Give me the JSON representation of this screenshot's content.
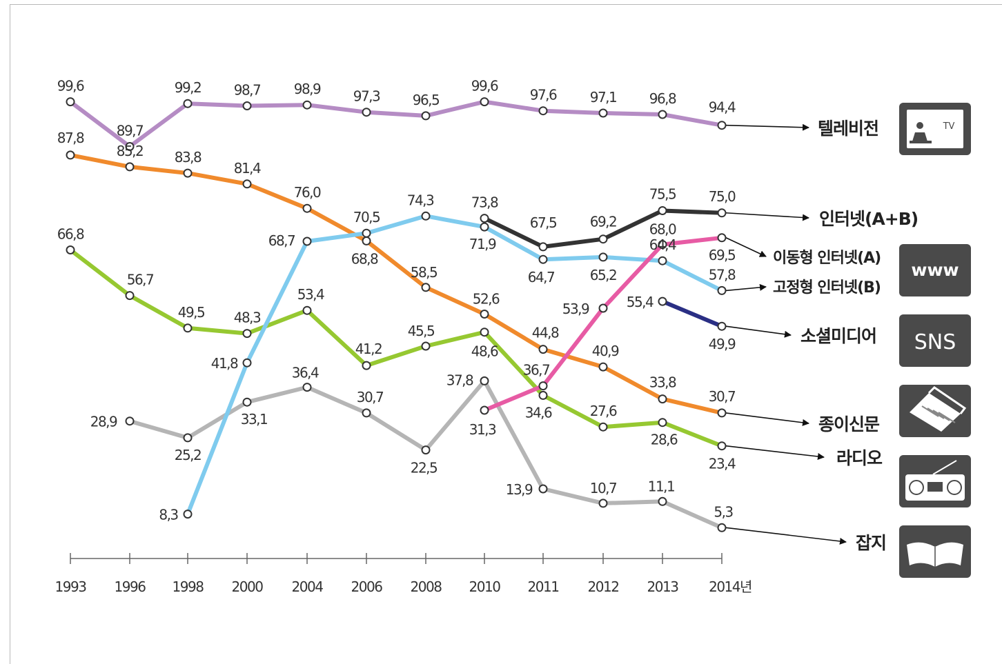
{
  "chart_data": {
    "type": "line",
    "categories": [
      "1993",
      "1996",
      "1998",
      "2000",
      "2004",
      "2006",
      "2008",
      "2010",
      "2011",
      "2012",
      "2013",
      "2014년"
    ],
    "ylim": [
      0,
      100
    ],
    "grid": false,
    "series": [
      {
        "name": "텔레비전",
        "color": "#b58cc4",
        "icon": "tv-icon",
        "icon_text": "TV",
        "values": [
          99.6,
          89.7,
          99.2,
          98.7,
          98.9,
          97.3,
          96.5,
          99.6,
          97.6,
          97.1,
          96.8,
          94.4
        ],
        "value_labels": [
          "99,6",
          "89,7",
          "99,2",
          "98,7",
          "98,9",
          "97,3",
          "96,5",
          "99,6",
          "97,6",
          "97,1",
          "96,8",
          "94,4"
        ]
      },
      {
        "name": "종이신문",
        "color": "#f08a2c",
        "icon": "newspaper-icon",
        "values": [
          87.8,
          85.2,
          83.8,
          81.4,
          76.0,
          68.8,
          58.5,
          52.6,
          44.8,
          40.9,
          33.8,
          30.7
        ],
        "value_labels": [
          "87,8",
          "85,2",
          "83,8",
          "81,4",
          "76,0",
          "68,8",
          "58,5",
          "52,6",
          "44,8",
          "40,9",
          "33,8",
          "30,7"
        ]
      },
      {
        "name": "라디오",
        "color": "#96c831",
        "icon": "radio-icon",
        "values": [
          66.8,
          56.7,
          49.5,
          48.3,
          53.4,
          41.2,
          45.5,
          48.6,
          34.6,
          27.6,
          28.6,
          23.4
        ],
        "value_labels": [
          "66,8",
          "56,7",
          "49,5",
          "48,3",
          "53,4",
          "41,2",
          "45,5",
          "48,6",
          "34,6",
          "27,6",
          "28,6",
          "23,4"
        ]
      },
      {
        "name": "고정형 인터넷(B)",
        "color": "#7fcbee",
        "icon": "www-icon",
        "icon_text": "www",
        "values": [
          null,
          null,
          8.3,
          41.8,
          68.7,
          70.5,
          74.3,
          71.9,
          64.7,
          65.2,
          64.4,
          57.8
        ],
        "value_labels": [
          "",
          "",
          "8,3",
          "41,8",
          "68,7",
          "70,5",
          "74,3",
          "71,9",
          "64,7",
          "65,2",
          "64,4",
          "57,8"
        ]
      },
      {
        "name": "잡지",
        "color": "#b5b5b5",
        "icon": "magazine-icon",
        "values": [
          null,
          28.9,
          25.2,
          33.1,
          36.4,
          30.7,
          22.5,
          37.8,
          13.9,
          10.7,
          11.1,
          5.3
        ],
        "value_labels": [
          "",
          "28,9",
          "25,2",
          "33,1",
          "36,4",
          "30,7",
          "22,5",
          "37,8",
          "13,9",
          "10,7",
          "11,1",
          "5,3"
        ]
      },
      {
        "name": "인터넷(A+B)",
        "color": "#333333",
        "values": [
          null,
          null,
          null,
          null,
          null,
          null,
          null,
          73.8,
          67.5,
          69.2,
          75.5,
          75.0
        ],
        "value_labels": [
          "",
          "",
          "",
          "",
          "",
          "",
          "",
          "73,8",
          "67,5",
          "69,2",
          "75,5",
          "75,0"
        ]
      },
      {
        "name": "이동형 인터넷(A)",
        "color": "#e75ba4",
        "values": [
          null,
          null,
          null,
          null,
          null,
          null,
          null,
          31.3,
          36.7,
          53.9,
          68.0,
          69.5
        ],
        "value_labels": [
          "",
          "",
          "",
          "",
          "",
          "",
          "",
          "31,3",
          "36,7",
          "53,9",
          "68,0",
          "69,5"
        ]
      },
      {
        "name": "소셜미디어",
        "color": "#2a2f84",
        "icon": "sns-icon",
        "icon_text": "SNS",
        "values": [
          null,
          null,
          null,
          null,
          null,
          null,
          null,
          null,
          null,
          null,
          55.4,
          49.9
        ],
        "value_labels": [
          "",
          "",
          "",
          "",
          "",
          "",
          "",
          "",
          "",
          "",
          "55,4",
          "49,9"
        ]
      }
    ]
  }
}
